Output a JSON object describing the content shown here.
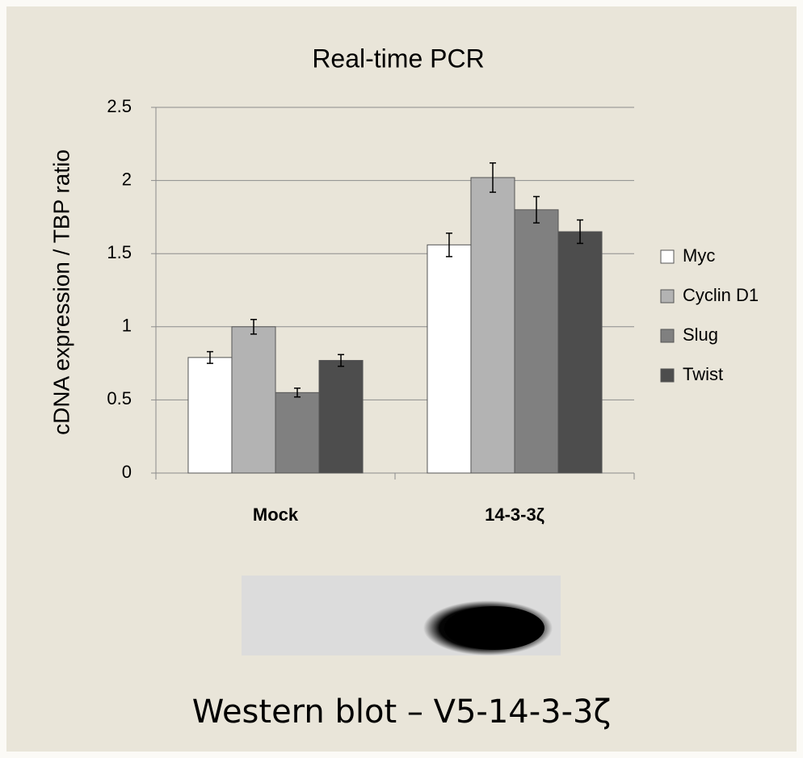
{
  "chart_data": {
    "type": "bar",
    "title": "Real-time PCR",
    "y_label": "cDNA expression / TBP ratio",
    "categories": [
      "Mock",
      "14-3-3ζ"
    ],
    "series": [
      {
        "name": "Myc",
        "color": "#ffffff",
        "values": [
          0.79,
          1.56
        ],
        "errors": [
          0.04,
          0.08
        ]
      },
      {
        "name": "Cyclin D1",
        "color": "#b3b3b3",
        "values": [
          1.0,
          2.02
        ],
        "errors": [
          0.05,
          0.1
        ]
      },
      {
        "name": "Slug",
        "color": "#808080",
        "values": [
          0.55,
          1.8
        ],
        "errors": [
          0.03,
          0.09
        ]
      },
      {
        "name": "Twist",
        "color": "#4d4d4d",
        "values": [
          0.77,
          1.65
        ],
        "errors": [
          0.04,
          0.08
        ]
      }
    ],
    "ylim": [
      0,
      2.5
    ],
    "yticks": [
      0,
      0.5,
      1,
      1.5,
      2,
      2.5
    ],
    "grid": true,
    "legend": "right"
  },
  "figure_caption": "Western blot – V5-14-3-3ζ"
}
